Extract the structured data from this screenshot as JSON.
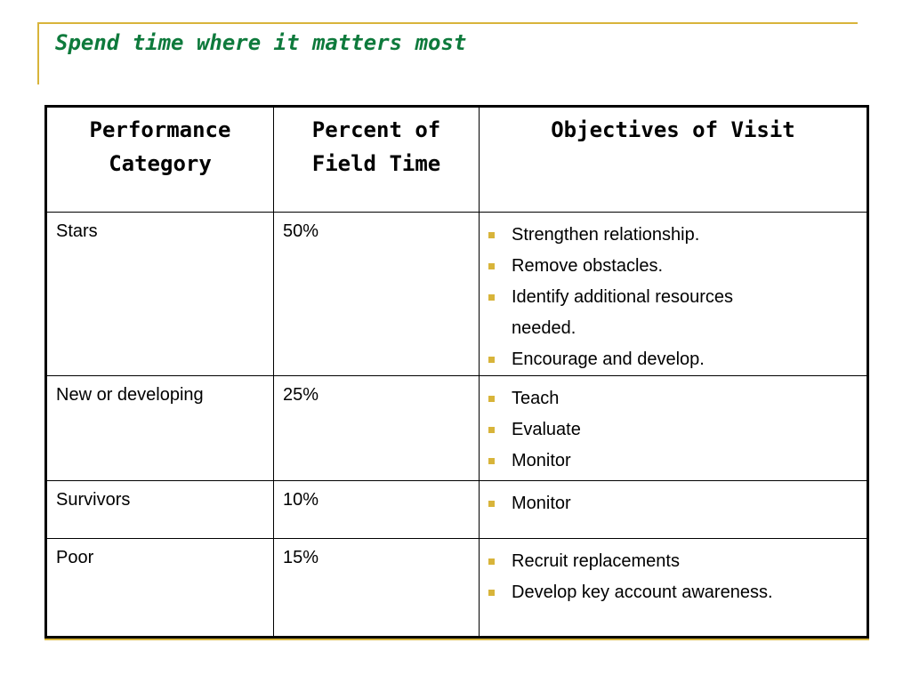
{
  "slide": {
    "title": "Spend time where it matters most"
  },
  "table": {
    "headers": [
      "Performance Category",
      "Percent of Field Time",
      "Objectives of Visit"
    ],
    "rows": [
      {
        "category": "Stars",
        "percent": "50%",
        "objectives": [
          "Strengthen relationship.",
          "Remove obstacles.",
          "Identify additional resources needed.",
          "Encourage and develop."
        ]
      },
      {
        "category": "New or developing",
        "percent": "25%",
        "objectives": [
          "Teach",
          "Evaluate",
          "Monitor"
        ]
      },
      {
        "category": "Survivors",
        "percent": "10%",
        "objectives": [
          "Monitor"
        ]
      },
      {
        "category": "Poor",
        "percent": "15%",
        "objectives": [
          "Recruit replacements",
          "Develop key account awareness."
        ]
      }
    ]
  },
  "colors": {
    "title": "#0e7a3c",
    "accent": "#d8b43a",
    "border": "#000000"
  }
}
